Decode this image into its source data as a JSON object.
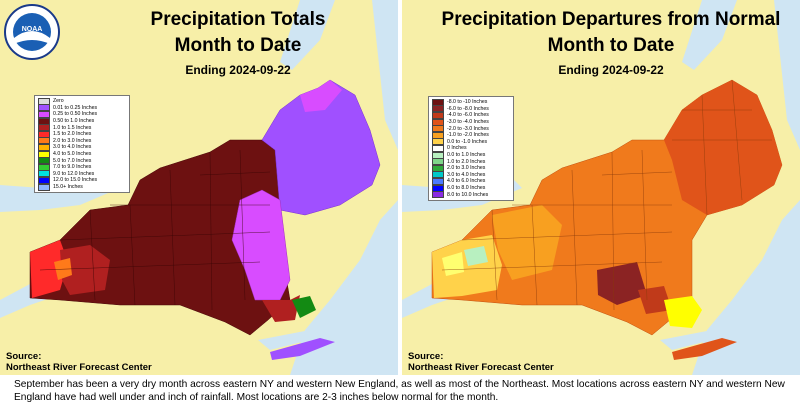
{
  "left_panel": {
    "title_line1": "Precipitation Totals",
    "title_line2": "Month to Date",
    "subtitle": "Ending 2024-09-22",
    "source_label": "Source:",
    "source_name": "Northeast River Forecast Center",
    "logo_text": "NOAA",
    "legend": [
      {
        "label": "Zero",
        "color": "#dcdcdc"
      },
      {
        "label": "0.01 to 0.25 Inches",
        "color": "#a050ff"
      },
      {
        "label": "0.25 to 0.50 Inches",
        "color": "#d84cff"
      },
      {
        "label": "0.50 to 1.0 Inches",
        "color": "#6d1111"
      },
      {
        "label": "1.0 to 1.5 Inches",
        "color": "#b02020"
      },
      {
        "label": "1.5 to 2.0 Inches",
        "color": "#ff2a2a"
      },
      {
        "label": "2.0 to 3.0 Inches",
        "color": "#ff7a1a"
      },
      {
        "label": "3.0 to 4.0 Inches",
        "color": "#ffb300"
      },
      {
        "label": "4.0 to 5.0 Inches",
        "color": "#ffff00"
      },
      {
        "label": "5.0 to 7.0 Inches",
        "color": "#138a13"
      },
      {
        "label": "7.0 to 9.0 Inches",
        "color": "#32cd32"
      },
      {
        "label": "9.0 to 12.0 Inches",
        "color": "#00e0e0"
      },
      {
        "label": "12.0 to 15.0 Inches",
        "color": "#0000ff"
      },
      {
        "label": "15.0+ Inches",
        "color": "#8fb4ff"
      }
    ]
  },
  "right_panel": {
    "title_line1": "Precipitation Departures from Normal",
    "title_line2": "Month to Date",
    "subtitle": "Ending 2024-09-22",
    "source_label": "Source:",
    "source_name": "Northeast River Forecast Center",
    "legend": [
      {
        "label": "-8.0 to -10 Inches",
        "color": "#6d1111"
      },
      {
        "label": "-6.0 to -8.0 Inches",
        "color": "#8b2323"
      },
      {
        "label": "-4.0 to -6.0 Inches",
        "color": "#c03a1a"
      },
      {
        "label": "-3.0 to -4.0 Inches",
        "color": "#e0541a"
      },
      {
        "label": "-2.0 to -3.0 Inches",
        "color": "#f07a1c"
      },
      {
        "label": "-1.0 to -2.0 Inches",
        "color": "#f8a020"
      },
      {
        "label": "0.0 to -1.0 Inches",
        "color": "#ffd24a"
      },
      {
        "label": "0 Inches",
        "color": "#ffffff"
      },
      {
        "label": "0.0 to 1.0 Inches",
        "color": "#b8f0c0"
      },
      {
        "label": "1.0 to 2.0 Inches",
        "color": "#7fd68a"
      },
      {
        "label": "2.0 to 3.0 Inches",
        "color": "#2faa3a"
      },
      {
        "label": "3.0 to 4.0 Inches",
        "color": "#00c8c8"
      },
      {
        "label": "4.0 to 6.0 Inches",
        "color": "#4a7aff"
      },
      {
        "label": "6.0 to 8.0 Inches",
        "color": "#0000ff"
      },
      {
        "label": "8.0 to 10.0 Inches",
        "color": "#8a2be2"
      }
    ]
  },
  "caption": "September has been a very dry month across eastern NY and western New England, as well as most of the Northeast.  Most locations across eastern NY and western New England have had well under and inch of rainfall.  Most locations are 2-3 inches below normal for the month.",
  "colors": {
    "panel_bg": "#f7efa8",
    "water": "#cfe5f3"
  }
}
